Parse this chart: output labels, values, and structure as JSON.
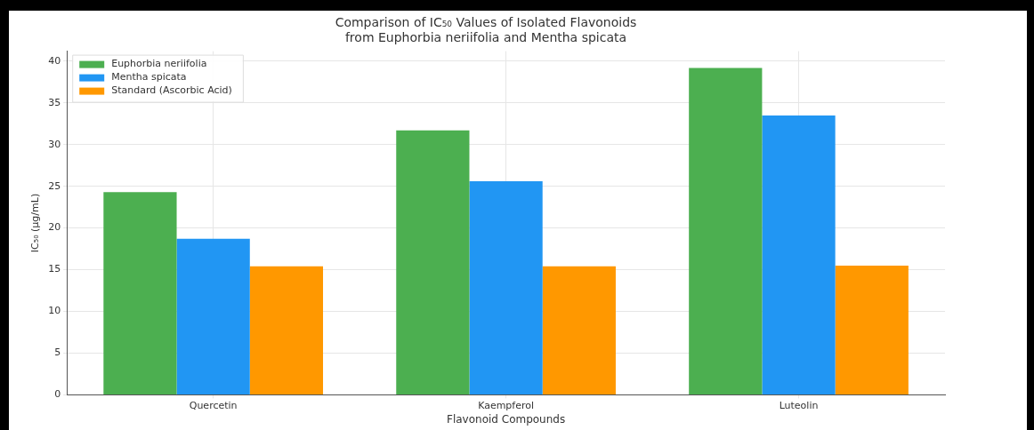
{
  "chart_data": {
    "type": "bar",
    "title": "Comparison of IC₅₀ Values of Isolated Flavonoids\nfrom Euphorbia neriifolia and Mentha spicata",
    "xlabel": "Flavonoid Compounds",
    "ylabel": "IC₅₀ (μg/mL)",
    "categories": [
      "Quercetin",
      "Kaempferol",
      "Luteolin"
    ],
    "series": [
      {
        "name": "Euphorbia neriifolia",
        "color": "#4caf50",
        "values": [
          24.3,
          31.7,
          39.2
        ]
      },
      {
        "name": "Mentha spicata",
        "color": "#2196f3",
        "values": [
          18.7,
          25.6,
          33.5
        ]
      },
      {
        "name": "Standard (Ascorbic Acid)",
        "color": "#ff9800",
        "values": [
          15.4,
          15.4,
          15.5
        ]
      }
    ],
    "ylim": [
      0,
      41.2
    ],
    "yticks": [
      0,
      5,
      10,
      15,
      20,
      25,
      30,
      35,
      40
    ],
    "grid": true,
    "legend": "top left"
  }
}
